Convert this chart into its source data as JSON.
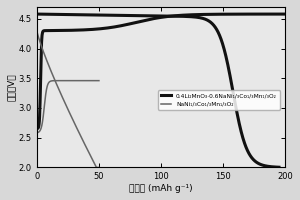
{
  "xlabel": "比容量 (mAh g⁻¹)",
  "ylabel": "电压（V）",
  "xlim": [
    0,
    200
  ],
  "ylim": [
    2.0,
    4.7
  ],
  "yticks": [
    2.0,
    2.5,
    3.0,
    3.5,
    4.0,
    4.5
  ],
  "xticks": [
    0,
    50,
    100,
    150,
    200
  ],
  "legend1": "0.4Li₂MnO₃·0.6NaNi₁/₃Co₁/₃Mn₁/₃O₂",
  "legend2": "NaNi₁/₃Co₁/₃Mn₁/₃O₂",
  "bg_color": "#d8d8d8",
  "plot_bg_color": "#e8e8e8",
  "line1_color": "#111111",
  "line2_color": "#666666",
  "lw_thick": 2.2,
  "lw_thin": 1.1
}
